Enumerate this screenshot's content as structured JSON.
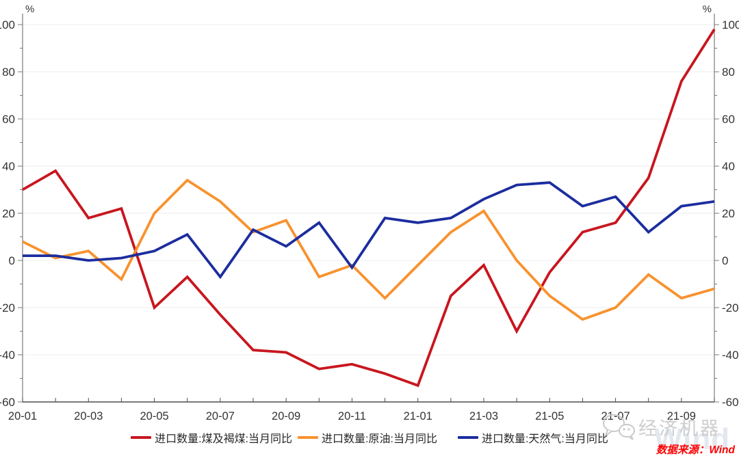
{
  "chart_data": {
    "type": "line",
    "title": "",
    "y_unit": "%",
    "ylim": [
      -60,
      105
    ],
    "yticks": [
      -60,
      -40,
      -20,
      0,
      20,
      40,
      60,
      80,
      100
    ],
    "grid": true,
    "legend_position": "bottom",
    "x": [
      "20-01",
      "20-02",
      "20-03",
      "20-04",
      "20-05",
      "20-06",
      "20-07",
      "20-08",
      "20-09",
      "20-10",
      "20-11",
      "20-12",
      "21-01",
      "21-02",
      "21-03",
      "21-04",
      "21-05",
      "21-06",
      "21-07",
      "21-08",
      "21-09",
      "21-10"
    ],
    "x_label_every": 2,
    "x_labeled_ticks": [
      "20-01",
      "20-03",
      "20-05",
      "20-07",
      "20-09",
      "20-11",
      "21-01",
      "21-03",
      "21-05",
      "21-07",
      "21-09"
    ],
    "series": [
      {
        "name": "进口数量:煤及褐煤:当月同比",
        "color": "#C8161E",
        "values": [
          30,
          38,
          18,
          22,
          -20,
          -7,
          -23,
          -38,
          -39,
          -46,
          -44,
          -48,
          -53,
          -15,
          -2,
          -30,
          -5,
          12,
          16,
          35,
          76,
          98
        ]
      },
      {
        "name": "进口数量:原油:当月同比",
        "color": "#F8922E",
        "values": [
          8,
          1,
          4,
          -8,
          20,
          34,
          25,
          12,
          17,
          -7,
          -2,
          -16,
          -2,
          12,
          21,
          0,
          -15,
          -25,
          -20,
          -6,
          -16,
          -12
        ]
      },
      {
        "name": "进口数量:天然气:当月同比",
        "color": "#1C2D9E",
        "values": [
          2,
          2,
          0,
          1,
          4,
          11,
          -7,
          13,
          6,
          16,
          -3,
          18,
          16,
          18,
          26,
          32,
          33,
          23,
          27,
          12,
          23,
          25
        ]
      }
    ]
  },
  "watermark": {
    "brand": "经济机器",
    "ghost": "Wind"
  },
  "footer": {
    "source": "数据来源：Wind"
  },
  "theme": {
    "grid_color": "#EDEDED",
    "axis_color": "#7A7A7A",
    "bottom_axis_color": "#4D4D4D",
    "label_color": "#333333"
  }
}
